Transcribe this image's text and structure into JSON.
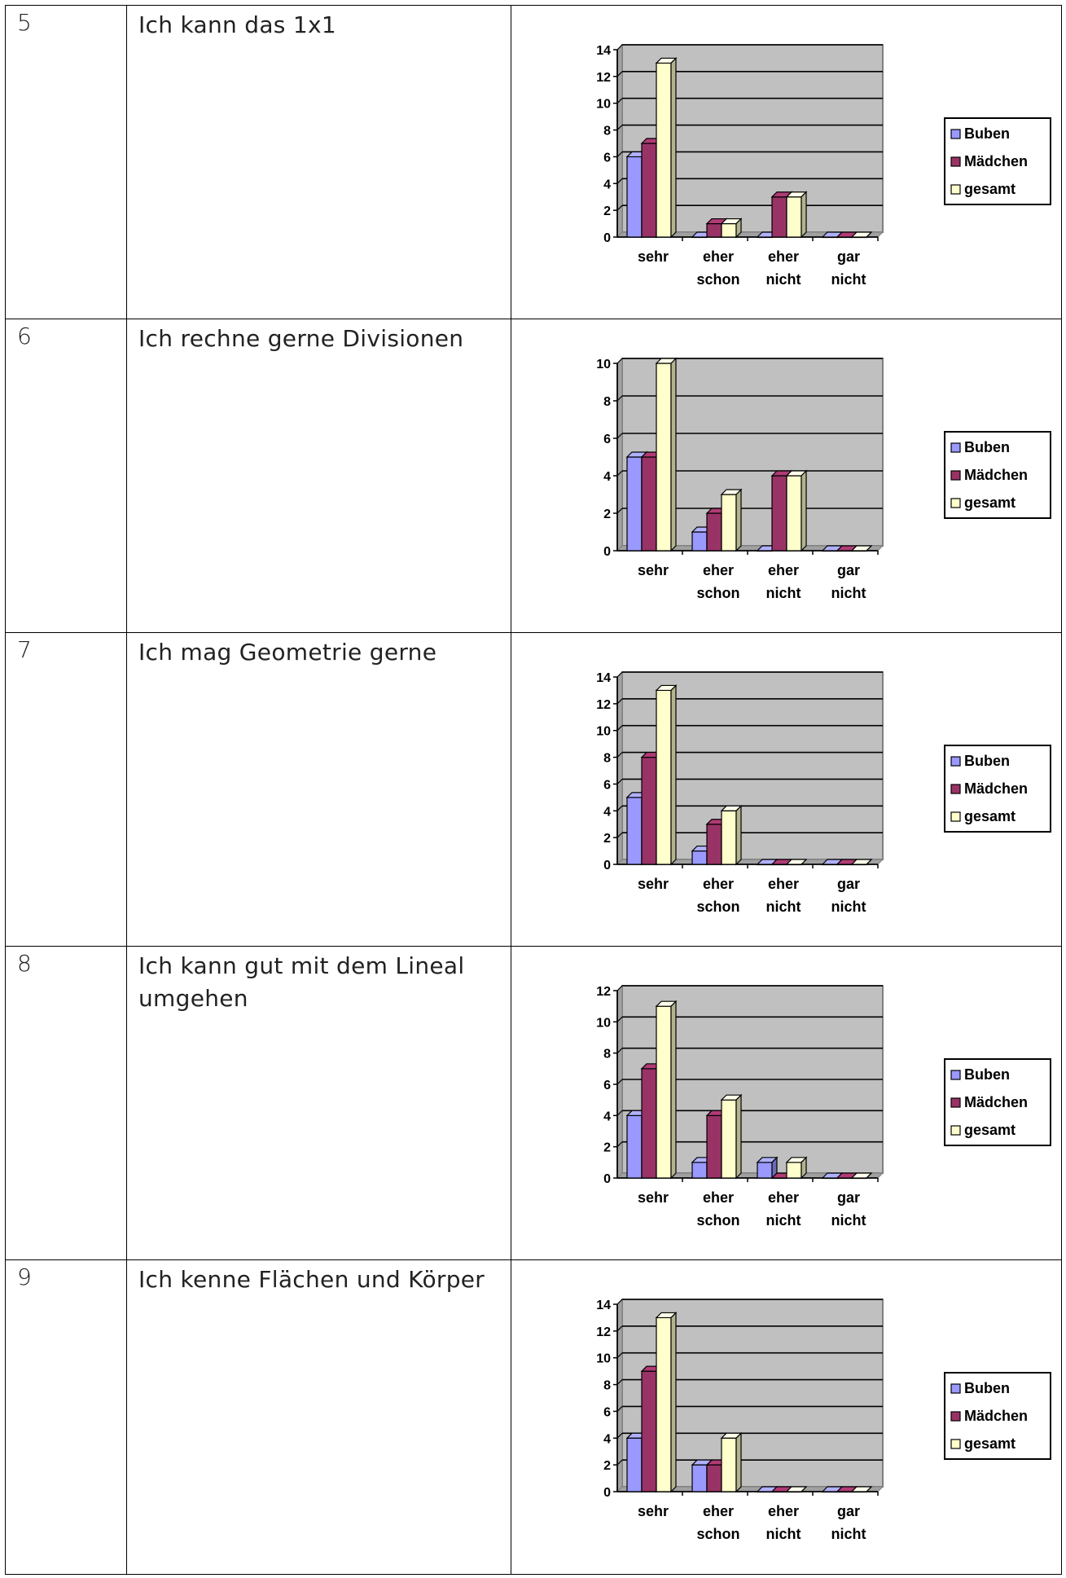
{
  "rows": [
    {
      "number": "5",
      "statement": "Ich kann das 1x1"
    },
    {
      "number": "6",
      "statement": "Ich rechne gerne Divisionen"
    },
    {
      "number": "7",
      "statement": "Ich mag Geometrie gerne"
    },
    {
      "number": "8",
      "statement": "Ich kann gut mit dem Lineal umgehen"
    },
    {
      "number": "9",
      "statement": "Ich kenne Flächen und Körper"
    }
  ],
  "chart_data": [
    {
      "type": "bar",
      "categories": [
        [
          "sehr"
        ],
        [
          "eher",
          "schon"
        ],
        [
          "eher",
          "nicht"
        ],
        [
          "gar",
          "nicht"
        ]
      ],
      "ylim": [
        0,
        14
      ],
      "yticks": [
        0,
        2,
        4,
        6,
        8,
        10,
        12,
        14
      ],
      "series": [
        {
          "name": "Buben",
          "values": [
            6,
            0,
            0,
            0
          ]
        },
        {
          "name": "Mädchen",
          "values": [
            7,
            1,
            3,
            0
          ]
        },
        {
          "name": "gesamt",
          "values": [
            13,
            1,
            3,
            0
          ]
        }
      ],
      "legend": "right",
      "grid": true
    },
    {
      "type": "bar",
      "categories": [
        [
          "sehr"
        ],
        [
          "eher",
          "schon"
        ],
        [
          "eher",
          "nicht"
        ],
        [
          "gar",
          "nicht"
        ]
      ],
      "ylim": [
        0,
        10
      ],
      "yticks": [
        0,
        2,
        4,
        6,
        8,
        10
      ],
      "series": [
        {
          "name": "Buben",
          "values": [
            5,
            1,
            0,
            0
          ]
        },
        {
          "name": "Mädchen",
          "values": [
            5,
            2,
            4,
            0
          ]
        },
        {
          "name": "gesamt",
          "values": [
            10,
            3,
            4,
            0
          ]
        }
      ],
      "legend": "right",
      "grid": true
    },
    {
      "type": "bar",
      "categories": [
        [
          "sehr"
        ],
        [
          "eher",
          "schon"
        ],
        [
          "eher",
          "nicht"
        ],
        [
          "gar",
          "nicht"
        ]
      ],
      "ylim": [
        0,
        14
      ],
      "yticks": [
        0,
        2,
        4,
        6,
        8,
        10,
        12,
        14
      ],
      "series": [
        {
          "name": "Buben",
          "values": [
            5,
            1,
            0,
            0
          ]
        },
        {
          "name": "Mädchen",
          "values": [
            8,
            3,
            0,
            0
          ]
        },
        {
          "name": "gesamt",
          "values": [
            13,
            4,
            0,
            0
          ]
        }
      ],
      "legend": "right",
      "grid": true
    },
    {
      "type": "bar",
      "categories": [
        [
          "sehr"
        ],
        [
          "eher",
          "schon"
        ],
        [
          "eher",
          "nicht"
        ],
        [
          "gar",
          "nicht"
        ]
      ],
      "ylim": [
        0,
        12
      ],
      "yticks": [
        0,
        2,
        4,
        6,
        8,
        10,
        12
      ],
      "series": [
        {
          "name": "Buben",
          "values": [
            4,
            1,
            1,
            0
          ]
        },
        {
          "name": "Mädchen",
          "values": [
            7,
            4,
            0,
            0
          ]
        },
        {
          "name": "gesamt",
          "values": [
            11,
            5,
            1,
            0
          ]
        }
      ],
      "legend": "right",
      "grid": true
    },
    {
      "type": "bar",
      "categories": [
        [
          "sehr"
        ],
        [
          "eher",
          "schon"
        ],
        [
          "eher",
          "nicht"
        ],
        [
          "gar",
          "nicht"
        ]
      ],
      "ylim": [
        0,
        14
      ],
      "yticks": [
        0,
        2,
        4,
        6,
        8,
        10,
        12,
        14
      ],
      "series": [
        {
          "name": "Buben",
          "values": [
            4,
            2,
            0,
            0
          ]
        },
        {
          "name": "Mädchen",
          "values": [
            9,
            2,
            0,
            0
          ]
        },
        {
          "name": "gesamt",
          "values": [
            13,
            4,
            0,
            0
          ]
        }
      ],
      "legend": "right",
      "grid": true
    }
  ],
  "colors": {
    "Buben": "#9999ff",
    "Mädchen": "#993366",
    "gesamt": "#ffffcc",
    "plot_bg": "#c0c0c0",
    "grid": "#000000",
    "border": "#808080"
  }
}
